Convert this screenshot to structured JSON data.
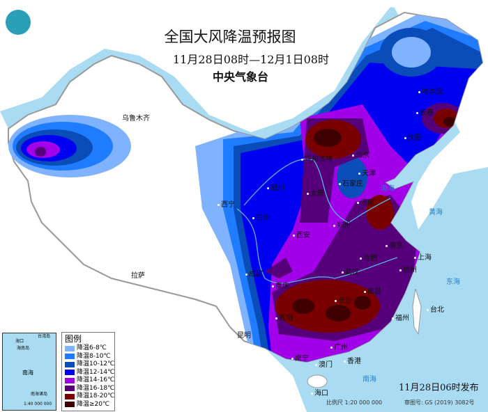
{
  "header": {
    "title": "全国大风降温预报图",
    "period": "11月28日08时—12月1日08时",
    "issuer": "中央气象台"
  },
  "legend": {
    "title": "图例",
    "items": [
      {
        "label": "降温6-8℃",
        "color": "#7fb2ff"
      },
      {
        "label": "降温8-10℃",
        "color": "#1f7bff"
      },
      {
        "label": "降温10-12℃",
        "color": "#0a4cb8"
      },
      {
        "label": "降温12-14℃",
        "color": "#0000f0"
      },
      {
        "label": "降温14-16℃",
        "color": "#a100e8"
      },
      {
        "label": "降温16-18℃",
        "color": "#55007a"
      },
      {
        "label": "降温18-20℃",
        "color": "#7a0000"
      },
      {
        "label": "降温≥20℃",
        "color": "#3e0000"
      }
    ]
  },
  "cities": [
    "乌鲁木齐",
    "哈尔滨",
    "长春",
    "沈阳",
    "北京",
    "天津",
    "石家庄",
    "呼和浩特",
    "太原",
    "济南",
    "郑州",
    "银川",
    "兰州",
    "西宁",
    "西安",
    "拉萨",
    "成都",
    "重庆",
    "武汉",
    "合肥",
    "南京",
    "上海",
    "杭州",
    "长沙",
    "南昌",
    "贵阳",
    "昆明",
    "南宁",
    "广州",
    "澳门",
    "香港",
    "福州",
    "台北",
    "海口"
  ],
  "seas": [
    "渤海",
    "黄海",
    "东海",
    "南海"
  ],
  "inset": {
    "labels": [
      "海口",
      "海南岛",
      "南海",
      "南海诸岛",
      "1:40 000 000",
      "台湾岛"
    ]
  },
  "footer": {
    "issued": "11月28日06时发布",
    "scale": "比例尺 1:20 000 000",
    "review": "审图号: GS (2019) 3082号"
  },
  "logo": "cma-logo"
}
